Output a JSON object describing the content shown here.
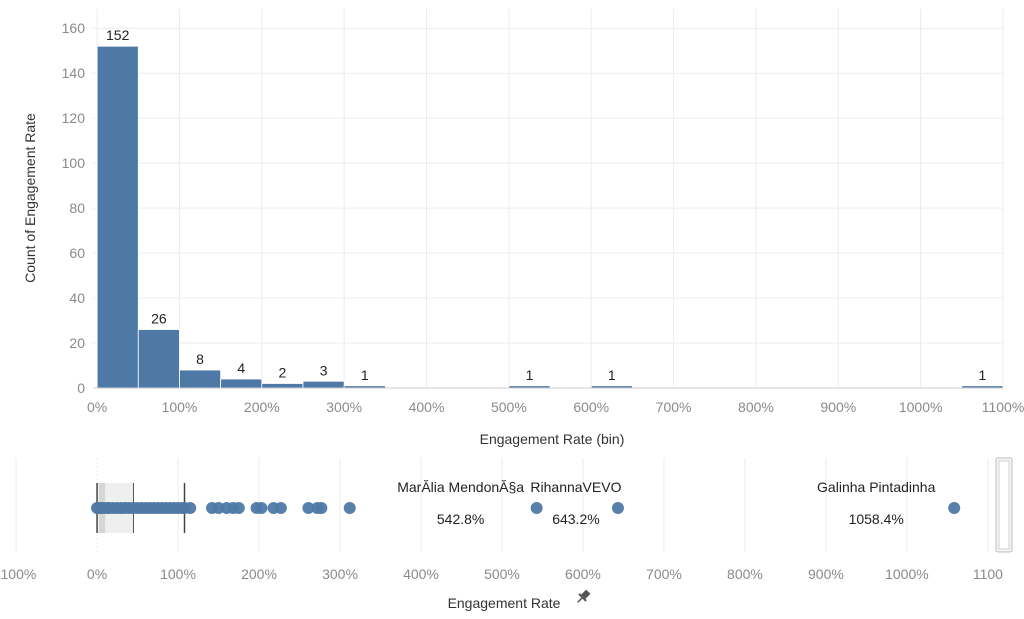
{
  "colors": {
    "mark": "#4e79a7",
    "grid": "#ececec",
    "axis": "#cccccc",
    "box_outer": "#efefef",
    "box_inner": "#d6d6d6"
  },
  "chart_data": [
    {
      "type": "bar",
      "chart_kind": "histogram",
      "xlabel": "Engagement Rate (bin)",
      "ylabel": "Count of Engagement Rate",
      "bin_width": 50,
      "xlim": [
        -5,
        1100
      ],
      "ylim": [
        0,
        165
      ],
      "grid": true,
      "x_ticks": [
        0,
        100,
        200,
        300,
        400,
        500,
        600,
        700,
        800,
        900,
        1000,
        1100
      ],
      "x_tick_labels": [
        "0%",
        "100%",
        "200%",
        "300%",
        "400%",
        "500%",
        "600%",
        "700%",
        "800%",
        "900%",
        "1000%",
        "1100%"
      ],
      "y_ticks": [
        0,
        20,
        40,
        60,
        80,
        100,
        120,
        140,
        160
      ],
      "bins": [
        {
          "start": 0,
          "value": 152
        },
        {
          "start": 50,
          "value": 26
        },
        {
          "start": 100,
          "value": 8
        },
        {
          "start": 150,
          "value": 4
        },
        {
          "start": 200,
          "value": 2
        },
        {
          "start": 250,
          "value": 3
        },
        {
          "start": 300,
          "value": 1
        },
        {
          "start": 500,
          "value": 1
        },
        {
          "start": 600,
          "value": 1
        },
        {
          "start": 1050,
          "value": 1
        }
      ]
    },
    {
      "type": "scatter",
      "chart_kind": "box-plot",
      "xlabel": "Engagement Rate",
      "xlabel_icon": "pin-icon",
      "xlim": [
        -105,
        1110
      ],
      "x_ticks": [
        -100,
        0,
        100,
        200,
        300,
        400,
        500,
        600,
        700,
        800,
        900,
        1000,
        1100
      ],
      "x_tick_labels": [
        "-100%",
        "0%",
        "100%",
        "200%",
        "300%",
        "400%",
        "500%",
        "600%",
        "700%",
        "800%",
        "900%",
        "1000%",
        "1100"
      ],
      "box": {
        "whisker_low": 0,
        "q1": 2,
        "median": 10,
        "q3": 45,
        "whisker_high": 108
      },
      "points": [
        0,
        2,
        5,
        8,
        12,
        15,
        20,
        25,
        30,
        35,
        40,
        45,
        50,
        55,
        60,
        65,
        70,
        75,
        80,
        85,
        90,
        95,
        100,
        105,
        108,
        115,
        142,
        150,
        160,
        168,
        175,
        197,
        203,
        218,
        227,
        261,
        272,
        277,
        312,
        542.8,
        643.2,
        1058.4
      ],
      "labeled_points": [
        {
          "name": "MarĂlia MendonĂ§a",
          "value_text": "542.8%",
          "x": 542.8
        },
        {
          "name": "RihannaVEVO",
          "value_text": "643.2%",
          "x": 643.2
        },
        {
          "name": "Galinha Pintadinha",
          "value_text": "1058.4%",
          "x": 1058.4
        }
      ]
    }
  ]
}
